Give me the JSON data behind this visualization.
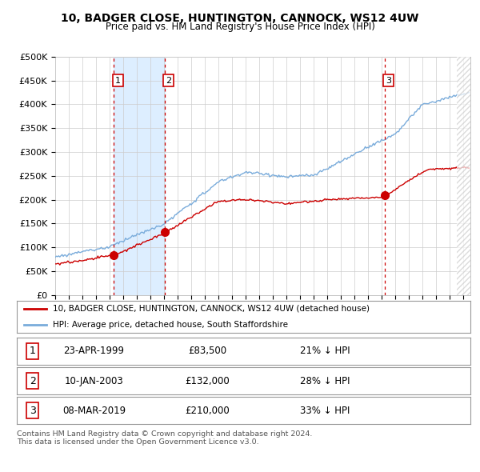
{
  "title": "10, BADGER CLOSE, HUNTINGTON, CANNOCK, WS12 4UW",
  "subtitle": "Price paid vs. HM Land Registry's House Price Index (HPI)",
  "ylabel_ticks": [
    "£0",
    "£50K",
    "£100K",
    "£150K",
    "£200K",
    "£250K",
    "£300K",
    "£350K",
    "£400K",
    "£450K",
    "£500K"
  ],
  "ytick_values": [
    0,
    50000,
    100000,
    150000,
    200000,
    250000,
    300000,
    350000,
    400000,
    450000,
    500000
  ],
  "ylim": [
    0,
    500000
  ],
  "xlim_start": 1995.0,
  "xlim_end": 2025.5,
  "xticks": [
    1995,
    1996,
    1997,
    1998,
    1999,
    2000,
    2001,
    2002,
    2003,
    2004,
    2005,
    2006,
    2007,
    2008,
    2009,
    2010,
    2011,
    2012,
    2013,
    2014,
    2015,
    2016,
    2017,
    2018,
    2019,
    2020,
    2021,
    2022,
    2023,
    2024,
    2025
  ],
  "sale_dates": [
    1999.31,
    2003.03,
    2019.19
  ],
  "sale_prices": [
    83500,
    132000,
    210000
  ],
  "red_line_color": "#cc0000",
  "blue_line_color": "#7aacdb",
  "blue_fill_color": "#ddeeff",
  "legend_line1": "10, BADGER CLOSE, HUNTINGTON, CANNOCK, WS12 4UW (detached house)",
  "legend_line2": "HPI: Average price, detached house, South Staffordshire",
  "table_rows": [
    [
      "1",
      "23-APR-1999",
      "£83,500",
      "21% ↓ HPI"
    ],
    [
      "2",
      "10-JAN-2003",
      "£132,000",
      "28% ↓ HPI"
    ],
    [
      "3",
      "08-MAR-2019",
      "£210,000",
      "33% ↓ HPI"
    ]
  ],
  "footnote": "Contains HM Land Registry data © Crown copyright and database right 2024.\nThis data is licensed under the Open Government Licence v3.0.",
  "background_color": "#ffffff",
  "grid_color": "#cccccc",
  "vline_color": "#cc0000",
  "label_positions": [
    [
      1999.31,
      450000,
      "1"
    ],
    [
      2003.03,
      450000,
      "2"
    ],
    [
      2019.19,
      450000,
      "3"
    ]
  ]
}
